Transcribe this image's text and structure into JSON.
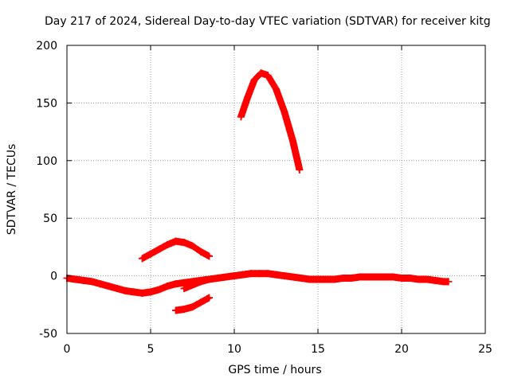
{
  "chart_data": {
    "type": "scatter",
    "title": "Day 217 of 2024, Sidereal Day-to-day VTEC variation (SDTVAR) for receiver kitg",
    "xlabel": "GPS time / hours",
    "ylabel": "SDTVAR / TECUs",
    "xlim": [
      0,
      25
    ],
    "ylim": [
      -50,
      200
    ],
    "xticks": [
      0,
      5,
      10,
      15,
      20,
      25
    ],
    "yticks": [
      -50,
      0,
      50,
      100,
      150,
      200
    ],
    "grid": true,
    "marker": "+",
    "marker_color": "#ff0000",
    "series": [
      {
        "name": "satellite-arc-main",
        "x": [
          0.0,
          0.5,
          1.0,
          1.5,
          2.0,
          2.5,
          3.0,
          3.5,
          4.0,
          4.5,
          5.0,
          5.5,
          6.0,
          6.5,
          7.0,
          7.5,
          8.0,
          8.5,
          9.0,
          9.5,
          10.0,
          10.5,
          11.0,
          11.5,
          12.0,
          12.5,
          13.0,
          13.5,
          14.0,
          14.5,
          15.0,
          15.5,
          16.0,
          16.5,
          17.0,
          17.5,
          18.0,
          18.5,
          19.0,
          19.5,
          20.0,
          20.5,
          21.0,
          21.5,
          22.0,
          22.5,
          22.8
        ],
        "y": [
          -2,
          -3,
          -4,
          -5,
          -7,
          -9,
          -11,
          -13,
          -14,
          -15,
          -14,
          -12,
          -9,
          -7,
          -6,
          -5,
          -4,
          -3,
          -2,
          -1,
          0,
          1,
          2,
          2,
          2,
          1,
          0,
          -1,
          -2,
          -3,
          -3,
          -3,
          -3,
          -2,
          -2,
          -1,
          -1,
          -1,
          -1,
          -1,
          -2,
          -2,
          -3,
          -3,
          -4,
          -5,
          -5
        ]
      },
      {
        "name": "satellite-arc-mid",
        "x": [
          4.5,
          5.0,
          5.5,
          6.0,
          6.5,
          7.0,
          7.5,
          8.0,
          8.5
        ],
        "y": [
          15,
          19,
          23,
          27,
          30,
          29,
          26,
          21,
          17
        ]
      },
      {
        "name": "satellite-arc-low",
        "x": [
          6.5,
          7.0,
          7.5,
          8.0,
          8.5
        ],
        "y": [
          -30,
          -29,
          -27,
          -23,
          -19
        ]
      },
      {
        "name": "satellite-arc-peak",
        "x": [
          10.4,
          10.8,
          11.2,
          11.6,
          12.0,
          12.5,
          13.0,
          13.5,
          13.9
        ],
        "y": [
          138,
          155,
          170,
          176,
          174,
          162,
          142,
          117,
          92
        ]
      },
      {
        "name": "satellite-arc-short",
        "x": [
          7.0,
          7.5,
          8.0,
          8.5
        ],
        "y": [
          -11,
          -8,
          -5,
          -3
        ]
      }
    ]
  }
}
